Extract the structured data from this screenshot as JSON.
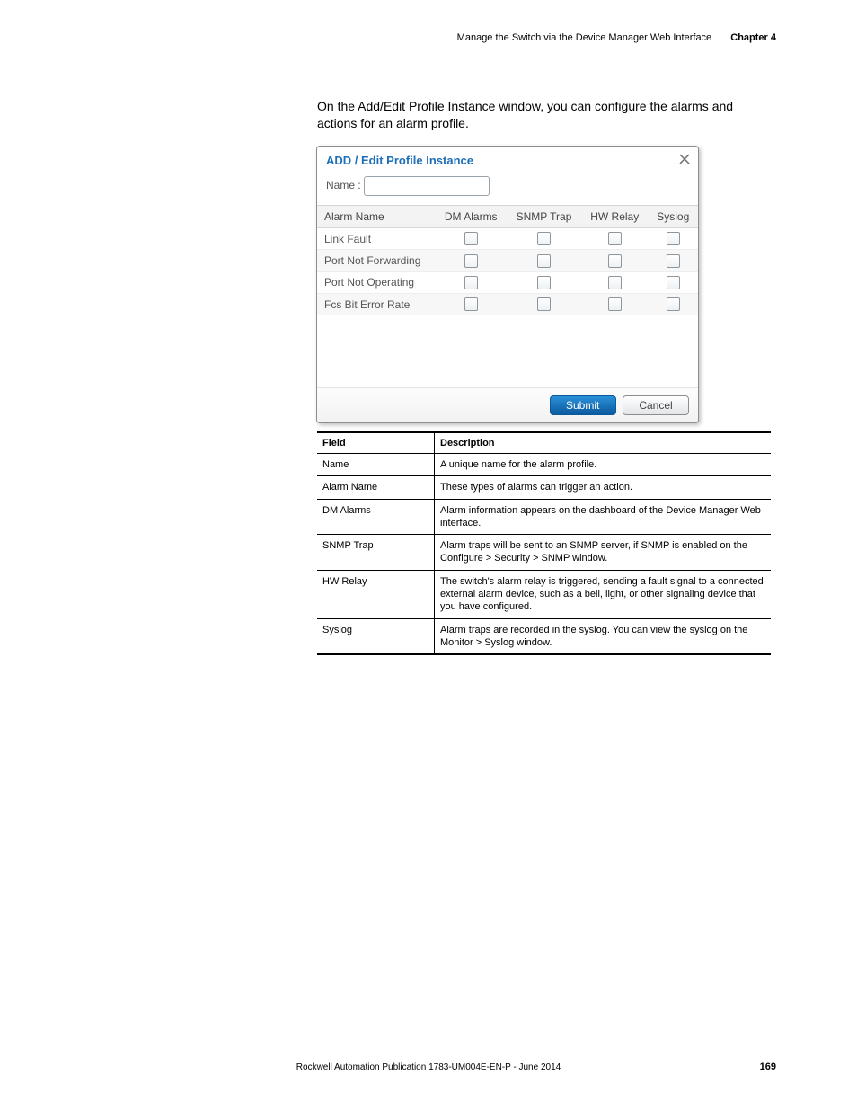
{
  "header": {
    "section": "Manage the Switch via the Device Manager Web Interface",
    "chapter_label": "Chapter 4"
  },
  "intro": "On the Add/Edit Profile Instance window, you can configure the alarms and actions for an alarm profile.",
  "dialog": {
    "title": "ADD / Edit Profile Instance",
    "name_label": "Name :",
    "name_value": "",
    "columns": [
      "Alarm Name",
      "DM Alarms",
      "SNMP Trap",
      "HW Relay",
      "Syslog"
    ],
    "rows": [
      {
        "label": "Link Fault",
        "alt": false
      },
      {
        "label": "Port Not Forwarding",
        "alt": true
      },
      {
        "label": "Port Not Operating",
        "alt": false
      },
      {
        "label": "Fcs Bit Error Rate",
        "alt": true
      }
    ],
    "submit_label": "Submit",
    "cancel_label": "Cancel"
  },
  "fields": {
    "head_field": "Field",
    "head_desc": "Description",
    "rows": [
      {
        "f": "Name",
        "d": "A unique name for the alarm profile."
      },
      {
        "f": "Alarm Name",
        "d": "These types of alarms can trigger an action."
      },
      {
        "f": "DM Alarms",
        "d": "Alarm information appears on the dashboard of the Device Manager Web interface."
      },
      {
        "f": "SNMP Trap",
        "d": "Alarm traps will be sent to an SNMP server, if SNMP is enabled on the Configure > Security > SNMP window."
      },
      {
        "f": "HW Relay",
        "d": "The switch's alarm relay is triggered, sending a fault signal to a connected external alarm device, such as a bell, light, or other signaling device that you have configured."
      },
      {
        "f": "Syslog",
        "d": "Alarm traps are recorded in the syslog. You can view the syslog on the Monitor > Syslog window."
      }
    ]
  },
  "footer": {
    "pub": "Rockwell Automation Publication 1783-UM004E-EN-P - June 2014",
    "page": "169"
  }
}
